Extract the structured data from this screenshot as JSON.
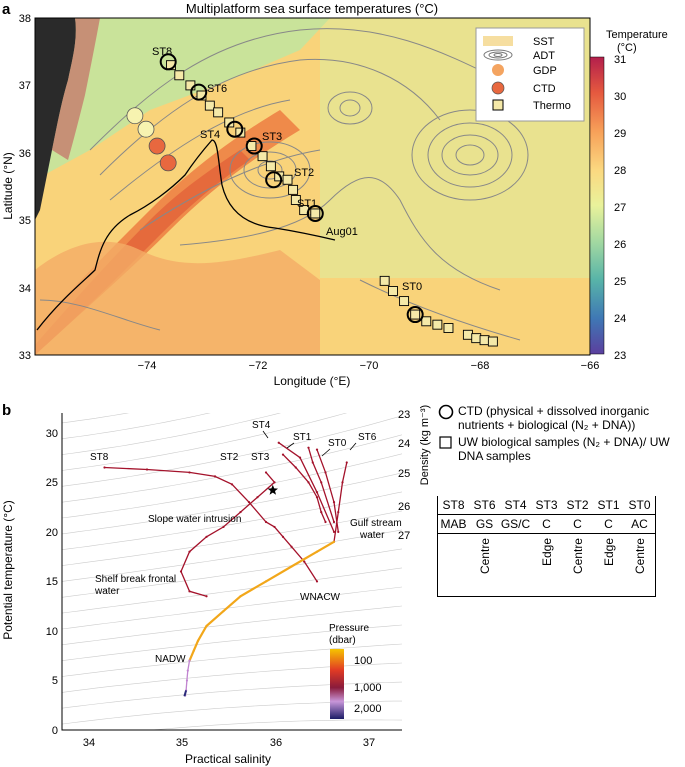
{
  "panel_a": {
    "letter": "a",
    "title": "Multiplatform sea surface temperatures (°C)",
    "xlabel": "Longitude (°E)",
    "ylabel": "Latitude (°N)",
    "xticks": [
      "−74",
      "−72",
      "−70",
      "−68",
      "−66"
    ],
    "yticks": [
      "33",
      "34",
      "35",
      "36",
      "37",
      "38"
    ],
    "legend": [
      "SST",
      "ADT",
      "GDP",
      "CTD",
      "Thermo"
    ],
    "colorbar_title": "Temperature (°C)",
    "colorbar_ticks": [
      "23",
      "24",
      "25",
      "26",
      "27",
      "28",
      "29",
      "30",
      "31"
    ],
    "station_labels": [
      "ST8",
      "ST6",
      "ST4",
      "ST3",
      "ST2",
      "ST1",
      "ST0",
      "Aug01"
    ],
    "colors": {
      "cold": "#5b3f9e",
      "warm": "#c7284e",
      "sst_mid": "#f6c07a",
      "gdp": "#f4a460",
      "ctd": "#e8683f",
      "thermo": "#f5e9a8"
    }
  },
  "panel_b": {
    "letter": "b",
    "xlabel": "Practical salinity",
    "ylabel": "Potential temperature (°C)",
    "density_label": "Density (kg m⁻³)",
    "density_ticks": [
      "23",
      "24",
      "25",
      "26",
      "27"
    ],
    "pressure_title": "Pressure (dbar)",
    "pressure_ticks": [
      "100",
      "1,000",
      "2,000"
    ],
    "annotations": [
      "ST8",
      "ST2",
      "ST3",
      "ST4",
      "ST1",
      "ST0",
      "ST6",
      "Slope water intrusion",
      "Gulf stream water",
      "Shelf break frontal water",
      "WNACW",
      "NADW"
    ]
  },
  "legend_text": {
    "ctd": "CTD (physical + dissolved inorganic nutrients + biological (N₂ + DNA))",
    "uw": "UW biological samples (N₂ + DNA)/ UW DNA samples"
  },
  "station_table": {
    "stations": [
      "ST8",
      "ST6",
      "ST4",
      "ST3",
      "ST2",
      "ST1",
      "ST0"
    ],
    "categories": [
      "MAB",
      "GS",
      "GS/C",
      "C",
      "C",
      "C",
      "AC"
    ],
    "eddy": [
      "",
      "Centre",
      "",
      "Edge",
      "Centre",
      "Edge",
      "Centre"
    ]
  },
  "chart_data": [
    {
      "type": "heatmap",
      "title": "Multiplatform sea surface temperatures (°C)",
      "xlabel": "Longitude (°E)",
      "ylabel": "Latitude (°N)",
      "xlim": [
        -76,
        -66
      ],
      "ylim": [
        33,
        38
      ],
      "colorbar": {
        "label": "Temperature (°C)",
        "range": [
          23,
          31
        ]
      },
      "stations": [
        {
          "name": "ST8",
          "lon": -73.6,
          "lat": 37.35
        },
        {
          "name": "ST6",
          "lon": -73.05,
          "lat": 36.9
        },
        {
          "name": "ST4",
          "lon": -72.4,
          "lat": 36.35
        },
        {
          "name": "ST3",
          "lon": -72.05,
          "lat": 36.1
        },
        {
          "name": "ST2",
          "lon": -71.7,
          "lat": 35.6
        },
        {
          "name": "ST1",
          "lon": -70.95,
          "lat": 35.1
        },
        {
          "name": "ST0",
          "lon": -69.15,
          "lat": 33.6
        }
      ],
      "gdp_points": [
        {
          "lon": -74.2,
          "lat": 36.55
        },
        {
          "lon": -74.0,
          "lat": 36.35
        }
      ],
      "ctd_points": [
        {
          "lon": -73.8,
          "lat": 36.1
        },
        {
          "lon": -73.6,
          "lat": 35.85
        }
      ],
      "thermo_track": [
        [
          -73.55,
          37.3
        ],
        [
          -73.4,
          37.15
        ],
        [
          -73.2,
          37.0
        ],
        [
          -73.0,
          36.85
        ],
        [
          -72.85,
          36.7
        ],
        [
          -72.7,
          36.6
        ],
        [
          -72.5,
          36.45
        ],
        [
          -72.3,
          36.3
        ],
        [
          -72.1,
          36.1
        ],
        [
          -71.9,
          35.95
        ],
        [
          -71.75,
          35.8
        ],
        [
          -71.6,
          35.65
        ],
        [
          -71.45,
          35.6
        ],
        [
          -71.35,
          35.45
        ],
        [
          -71.3,
          35.3
        ],
        [
          -71.15,
          35.15
        ],
        [
          -70.95,
          35.1
        ],
        [
          -69.7,
          34.1
        ],
        [
          -69.55,
          33.95
        ],
        [
          -69.35,
          33.8
        ],
        [
          -69.15,
          33.6
        ],
        [
          -68.95,
          33.5
        ],
        [
          -68.75,
          33.45
        ],
        [
          -68.55,
          33.4
        ],
        [
          -68.2,
          33.3
        ],
        [
          -68.05,
          33.25
        ],
        [
          -67.9,
          33.22
        ],
        [
          -67.75,
          33.2
        ]
      ]
    },
    {
      "type": "scatter",
      "xlabel": "Practical salinity",
      "ylabel": "Potential temperature (°C)",
      "xlim": [
        33.5,
        37.5
      ],
      "ylim": [
        0,
        32
      ],
      "color_label": "Pressure (dbar)",
      "series": [
        {
          "name": "ST8",
          "x": [
            34.0,
            34.5,
            35.0,
            35.3,
            35.5,
            35.7,
            35.9,
            36.0,
            36.1,
            36.2,
            36.35,
            36.5
          ],
          "y": [
            26.5,
            26.3,
            26.0,
            25.6,
            24.8,
            23.0,
            21.0,
            20.5,
            19.5,
            18.5,
            17.0,
            15.0
          ]
        },
        {
          "name": "ST2",
          "x": [
            35.9,
            36.0,
            35.8,
            35.6,
            35.4,
            35.2,
            35.0,
            34.9,
            35.0,
            35.2
          ],
          "y": [
            26.0,
            25.0,
            23.5,
            22.0,
            20.5,
            19.5,
            18.0,
            16.0,
            14.0,
            13.5
          ]
        },
        {
          "name": "ST3",
          "x": [
            36.1,
            36.25,
            36.4,
            36.5,
            36.55,
            36.6
          ],
          "y": [
            27.8,
            26.5,
            25.0,
            23.5,
            22.0,
            21.0
          ]
        },
        {
          "name": "ST4",
          "x": [
            36.05,
            36.3,
            36.5,
            36.7
          ],
          "y": [
            29.0,
            27.5,
            24.0,
            20.0
          ]
        },
        {
          "name": "ST1",
          "x": [
            36.4,
            36.45,
            36.55,
            36.7
          ],
          "y": [
            28.5,
            27.0,
            25.0,
            21.0
          ]
        },
        {
          "name": "ST0",
          "x": [
            36.5,
            36.6,
            36.7,
            36.75
          ],
          "y": [
            28.3,
            26.0,
            23.0,
            20.0
          ]
        },
        {
          "name": "ST6",
          "x": [
            36.85,
            36.8,
            36.75,
            36.7
          ],
          "y": [
            27.0,
            25.0,
            22.0,
            19.0
          ]
        },
        {
          "name": "WNACW",
          "x": [
            36.7,
            36.5,
            36.2,
            35.9,
            35.6,
            35.4,
            35.2,
            35.1,
            35.05,
            35.0
          ],
          "y": [
            19.0,
            18.0,
            16.5,
            15.0,
            13.5,
            12.0,
            10.5,
            9.0,
            8.0,
            7.0
          ]
        },
        {
          "name": "NADW",
          "x": [
            35.0,
            34.98,
            34.97,
            34.96,
            34.95
          ],
          "y": [
            7.0,
            6.0,
            5.0,
            4.0,
            3.5
          ]
        }
      ],
      "marker": {
        "name": "star",
        "x": 35.98,
        "y": 24.2
      }
    }
  ]
}
